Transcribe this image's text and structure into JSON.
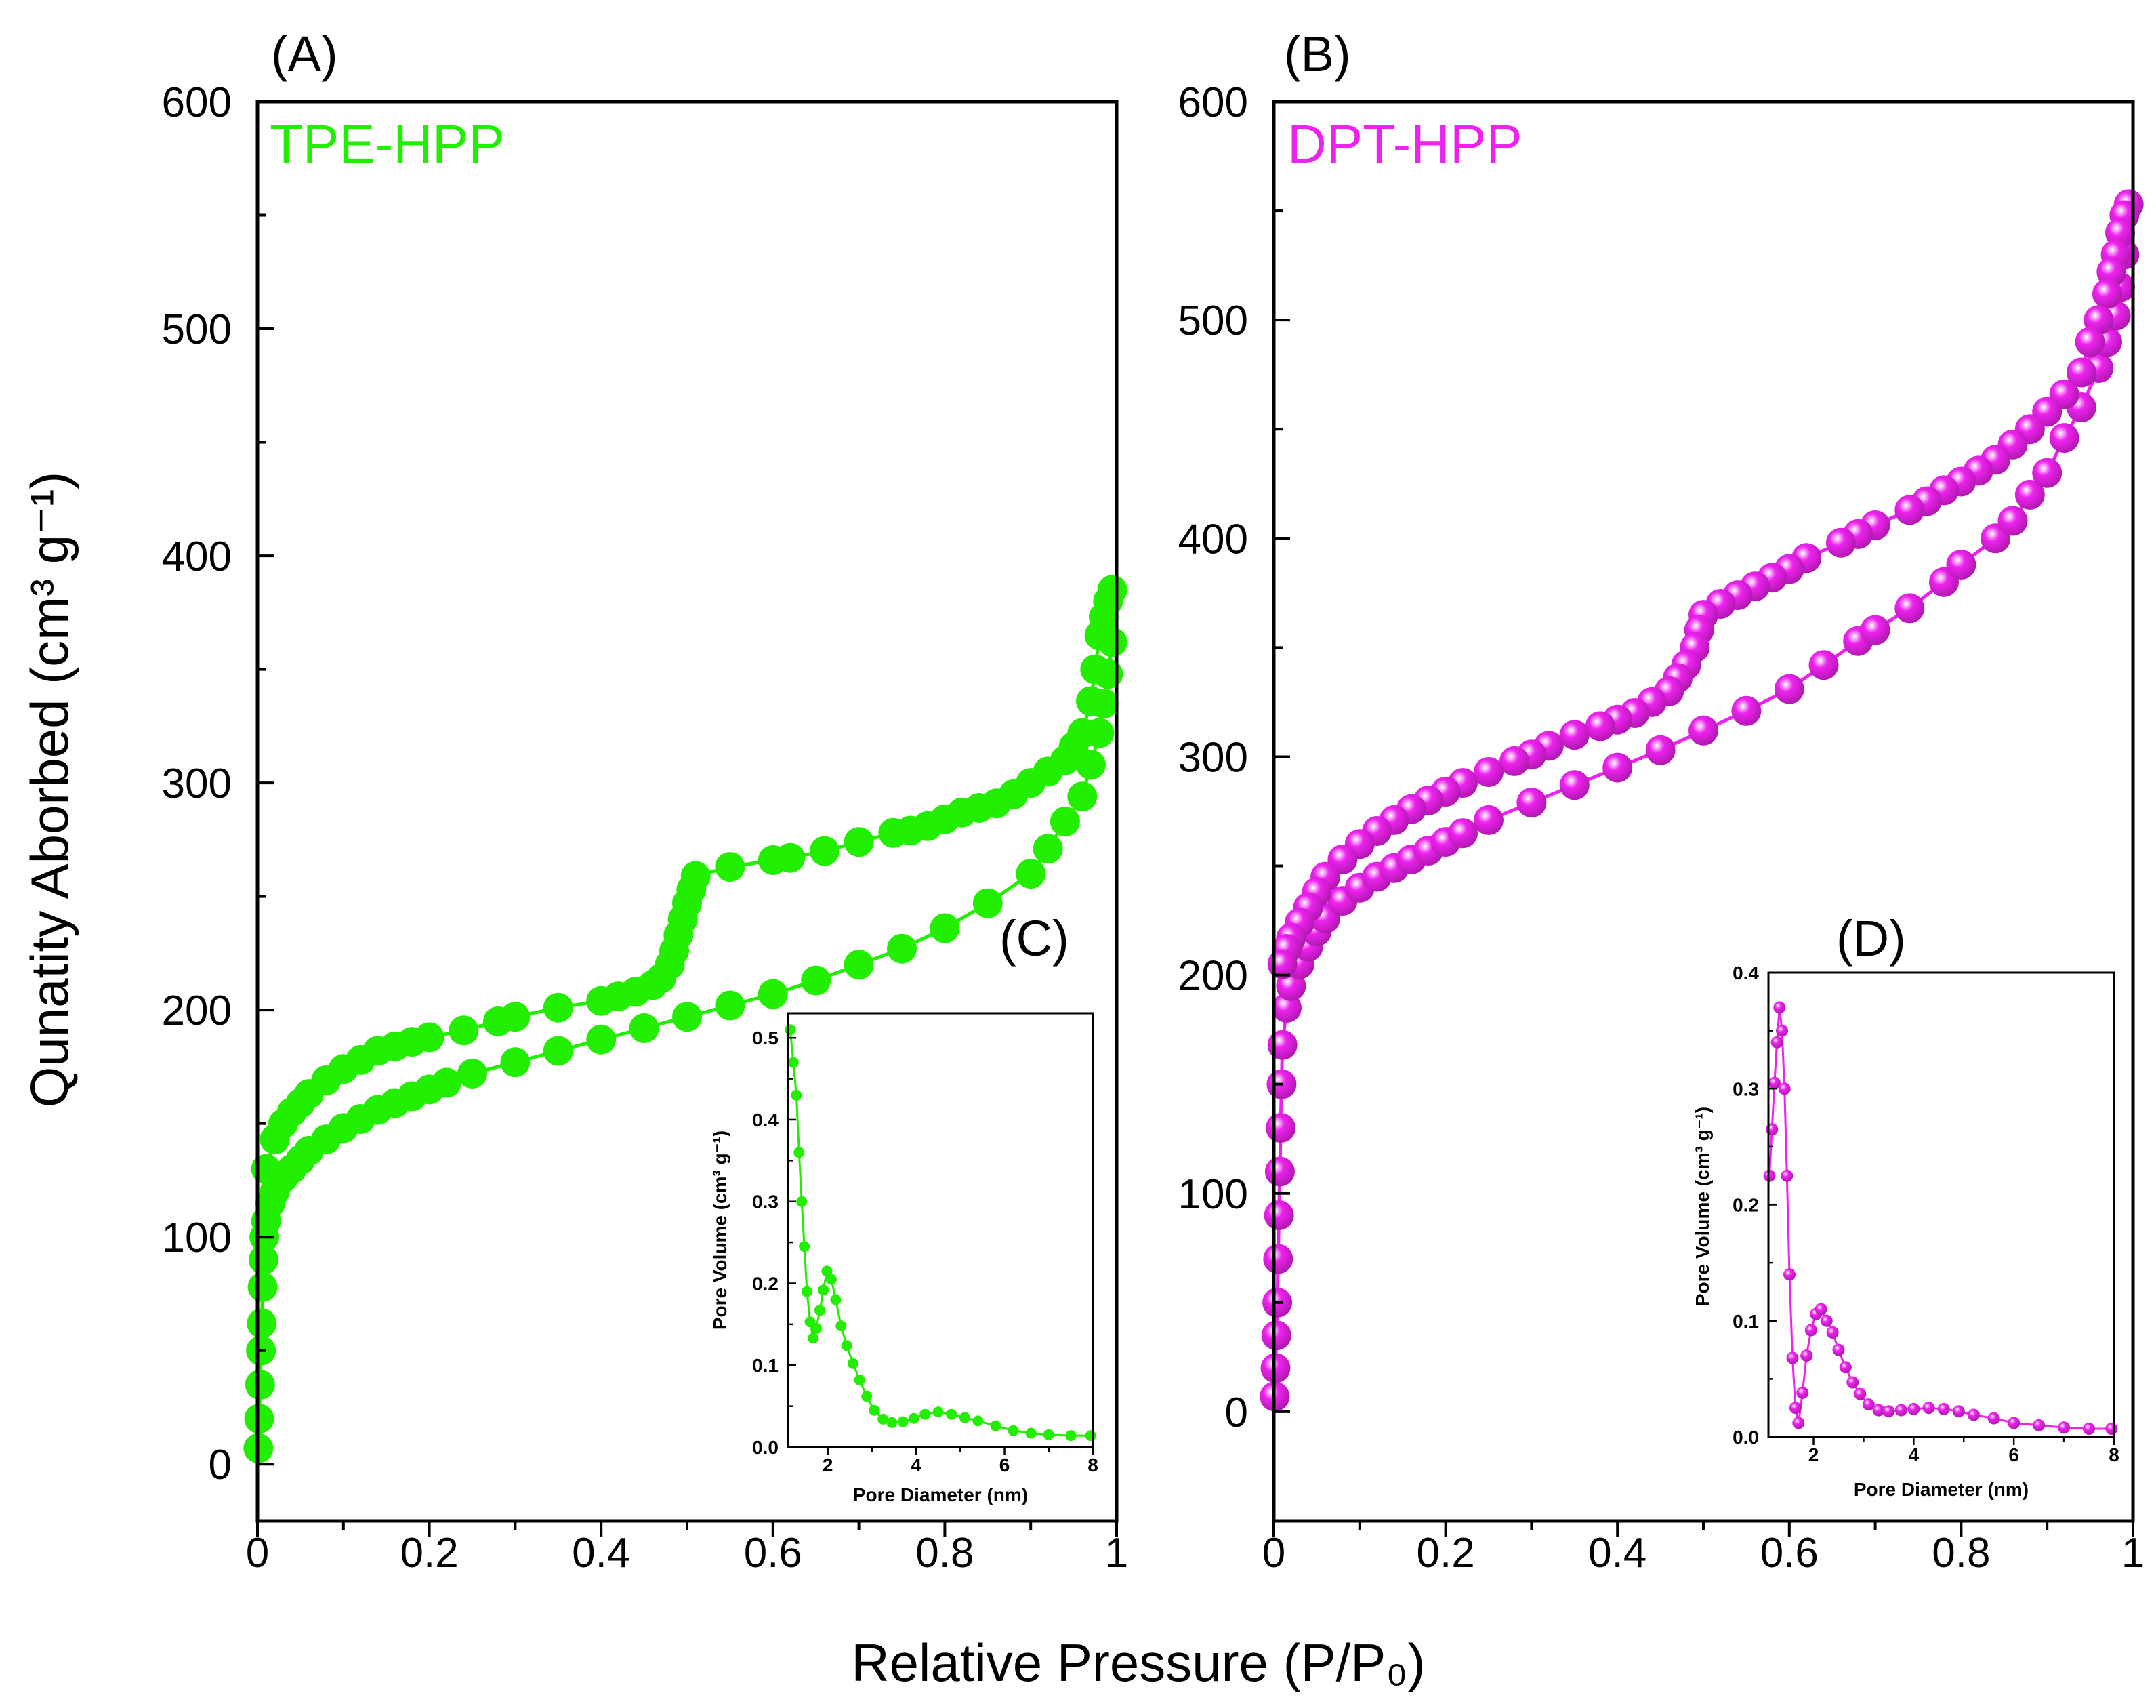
{
  "figure": {
    "ylabel": "Qunatity Aborbed (cm³ g⁻¹)",
    "xlabel": "Relative Pressure (P/P₀)"
  },
  "chart_data": [
    {
      "id": "A",
      "panel_label": "(A)",
      "type": "scatter",
      "series_label": "TPE-HPP",
      "color": "#22ee00",
      "xlim": [
        0,
        1
      ],
      "ylim": [
        -25,
        600
      ],
      "xticks": [
        "0",
        "0.2",
        "0.4",
        "0.6",
        "0.8",
        "1"
      ],
      "yticks": [
        "0",
        "100",
        "200",
        "300",
        "400",
        "500",
        "600"
      ],
      "series": [
        {
          "x": [
            0.001,
            0.002,
            0.003,
            0.004,
            0.005,
            0.006,
            0.007,
            0.008,
            0.01,
            0.015,
            0.02,
            0.03,
            0.04,
            0.05,
            0.06,
            0.08,
            0.1,
            0.12,
            0.14,
            0.16,
            0.18,
            0.2,
            0.22,
            0.25,
            0.3,
            0.35,
            0.4,
            0.45,
            0.5,
            0.55,
            0.6,
            0.65,
            0.7,
            0.75,
            0.8,
            0.85,
            0.9,
            0.92,
            0.94,
            0.96,
            0.97,
            0.98,
            0.985,
            0.99,
            0.995
          ],
          "y": [
            7,
            20,
            35,
            50,
            62,
            78,
            90,
            100,
            107,
            115,
            120,
            126,
            130,
            134,
            138,
            143,
            148,
            152,
            156,
            159,
            162,
            165,
            168,
            172,
            177,
            182,
            187,
            192,
            197,
            202,
            207,
            213,
            220,
            227,
            236,
            247,
            260,
            271,
            283,
            294,
            308,
            322,
            335,
            348,
            362
          ]
        },
        {
          "x": [
            0.995,
            0.99,
            0.985,
            0.98,
            0.975,
            0.97,
            0.96,
            0.95,
            0.94,
            0.92,
            0.9,
            0.88,
            0.86,
            0.84,
            0.82,
            0.8,
            0.78,
            0.76,
            0.74,
            0.7,
            0.66,
            0.62,
            0.6,
            0.55,
            0.51,
            0.505,
            0.5,
            0.495,
            0.49,
            0.485,
            0.48,
            0.47,
            0.46,
            0.44,
            0.42,
            0.4,
            0.35,
            0.3,
            0.28,
            0.24,
            0.2,
            0.18,
            0.16,
            0.14,
            0.12,
            0.1,
            0.08,
            0.06,
            0.05,
            0.04,
            0.03,
            0.02,
            0.01
          ],
          "y": [
            385,
            380,
            373,
            365,
            350,
            336,
            322,
            316,
            310,
            305,
            300,
            295,
            291,
            289,
            287,
            284,
            281,
            279,
            278,
            274,
            270,
            267,
            266,
            263,
            259,
            253,
            247,
            240,
            233,
            226,
            220,
            214,
            211,
            208,
            206,
            204,
            201,
            197,
            195,
            191,
            188,
            186,
            184,
            182,
            178,
            174,
            169,
            163,
            159,
            155,
            150,
            143,
            130
          ]
        }
      ]
    },
    {
      "id": "C",
      "panel_label": "(C)",
      "type": "line",
      "xlabel": "Pore Diameter (nm)",
      "ylabel": "Pore Volume (cm³ g⁻¹)",
      "color": "#22ee00",
      "xlim": [
        1.1,
        8
      ],
      "ylim": [
        0,
        0.53
      ],
      "xticks": [
        "2",
        "4",
        "6",
        "8"
      ],
      "yticks": [
        "0.0",
        "0.1",
        "0.2",
        "0.3",
        "0.4",
        "0.5"
      ],
      "x": [
        1.15,
        1.22,
        1.29,
        1.35,
        1.41,
        1.47,
        1.53,
        1.6,
        1.67,
        1.74,
        1.82,
        1.9,
        1.98,
        2.08,
        2.18,
        2.3,
        2.43,
        2.57,
        2.72,
        2.88,
        3.05,
        3.25,
        3.45,
        3.7,
        3.95,
        4.2,
        4.5,
        4.8,
        5.1,
        5.4,
        5.8,
        6.2,
        6.6,
        7.0,
        7.5,
        7.95
      ],
      "y": [
        0.51,
        0.47,
        0.43,
        0.36,
        0.3,
        0.245,
        0.19,
        0.153,
        0.133,
        0.145,
        0.167,
        0.192,
        0.215,
        0.205,
        0.18,
        0.148,
        0.124,
        0.102,
        0.082,
        0.062,
        0.045,
        0.034,
        0.03,
        0.031,
        0.035,
        0.04,
        0.043,
        0.04,
        0.036,
        0.032,
        0.026,
        0.02,
        0.017,
        0.015,
        0.014,
        0.014
      ]
    },
    {
      "id": "B",
      "panel_label": "(B)",
      "type": "scatter",
      "series_label": "DPT-HPP",
      "color": "#ee22ee",
      "xlim": [
        0,
        1
      ],
      "ylim": [
        -50,
        600
      ],
      "xticks": [
        "0",
        "0.2",
        "0.4",
        "0.6",
        "0.8",
        "1"
      ],
      "yticks": [
        "0",
        "100",
        "200",
        "300",
        "400",
        "500",
        "600"
      ],
      "series": [
        {
          "x": [
            0.001,
            0.002,
            0.003,
            0.004,
            0.005,
            0.006,
            0.007,
            0.008,
            0.009,
            0.01,
            0.015,
            0.02,
            0.03,
            0.04,
            0.05,
            0.06,
            0.08,
            0.1,
            0.12,
            0.14,
            0.16,
            0.18,
            0.2,
            0.22,
            0.25,
            0.3,
            0.35,
            0.4,
            0.45,
            0.5,
            0.55,
            0.6,
            0.64,
            0.68,
            0.7,
            0.74,
            0.78,
            0.8,
            0.84,
            0.86,
            0.88,
            0.9,
            0.92,
            0.94,
            0.96,
            0.97,
            0.98,
            0.985,
            0.99
          ],
          "y": [
            7,
            20,
            35,
            50,
            70,
            90,
            110,
            130,
            150,
            168,
            185,
            195,
            205,
            213,
            220,
            226,
            234,
            240,
            245,
            249,
            253,
            257,
            261,
            265,
            271,
            279,
            287,
            295,
            303,
            312,
            321,
            331,
            342,
            353,
            358,
            368,
            380,
            388,
            400,
            408,
            420,
            430,
            446,
            460,
            478,
            490,
            502,
            515,
            530
          ]
        },
        {
          "x": [
            0.995,
            0.99,
            0.985,
            0.98,
            0.975,
            0.97,
            0.96,
            0.95,
            0.94,
            0.92,
            0.9,
            0.88,
            0.86,
            0.84,
            0.82,
            0.8,
            0.78,
            0.76,
            0.74,
            0.7,
            0.68,
            0.66,
            0.62,
            0.6,
            0.58,
            0.56,
            0.54,
            0.52,
            0.5,
            0.495,
            0.49,
            0.48,
            0.47,
            0.46,
            0.44,
            0.42,
            0.4,
            0.38,
            0.35,
            0.32,
            0.3,
            0.28,
            0.25,
            0.22,
            0.2,
            0.18,
            0.16,
            0.14,
            0.12,
            0.1,
            0.08,
            0.06,
            0.05,
            0.04,
            0.03,
            0.02,
            0.015,
            0.01
          ],
          "y": [
            553,
            548,
            540,
            530,
            522,
            512,
            500,
            490,
            476,
            466,
            458,
            450,
            443,
            436,
            431,
            426,
            422,
            417,
            413,
            406,
            402,
            398,
            391,
            386,
            382,
            378,
            374,
            370,
            365,
            358,
            350,
            342,
            336,
            330,
            325,
            320,
            317,
            314,
            310,
            305,
            301,
            298,
            293,
            288,
            284,
            280,
            276,
            271,
            266,
            260,
            253,
            245,
            238,
            231,
            224,
            217,
            212,
            205
          ]
        }
      ]
    },
    {
      "id": "D",
      "panel_label": "(D)",
      "type": "line",
      "xlabel": "Pore Diameter (nm)",
      "ylabel": "Pore Volume (cm³ g⁻¹)",
      "color": "#ee22ee",
      "xlim": [
        1.1,
        8
      ],
      "ylim": [
        0,
        0.4
      ],
      "xticks": [
        "2",
        "4",
        "6",
        "8"
      ],
      "yticks": [
        "0.0",
        "0.1",
        "0.2",
        "0.3",
        "0.4"
      ],
      "x": [
        1.12,
        1.17,
        1.22,
        1.27,
        1.32,
        1.37,
        1.42,
        1.47,
        1.52,
        1.58,
        1.64,
        1.7,
        1.78,
        1.86,
        1.95,
        2.05,
        2.15,
        2.26,
        2.38,
        2.5,
        2.64,
        2.78,
        2.93,
        3.1,
        3.3,
        3.5,
        3.75,
        4.0,
        4.3,
        4.6,
        4.9,
        5.2,
        5.6,
        6.0,
        6.5,
        7.0,
        7.5,
        7.95
      ],
      "y": [
        0.225,
        0.265,
        0.305,
        0.34,
        0.37,
        0.35,
        0.3,
        0.225,
        0.14,
        0.068,
        0.025,
        0.012,
        0.038,
        0.07,
        0.092,
        0.106,
        0.11,
        0.1,
        0.09,
        0.075,
        0.06,
        0.047,
        0.037,
        0.028,
        0.023,
        0.022,
        0.023,
        0.024,
        0.025,
        0.024,
        0.022,
        0.019,
        0.016,
        0.012,
        0.01,
        0.008,
        0.007,
        0.007
      ]
    }
  ]
}
